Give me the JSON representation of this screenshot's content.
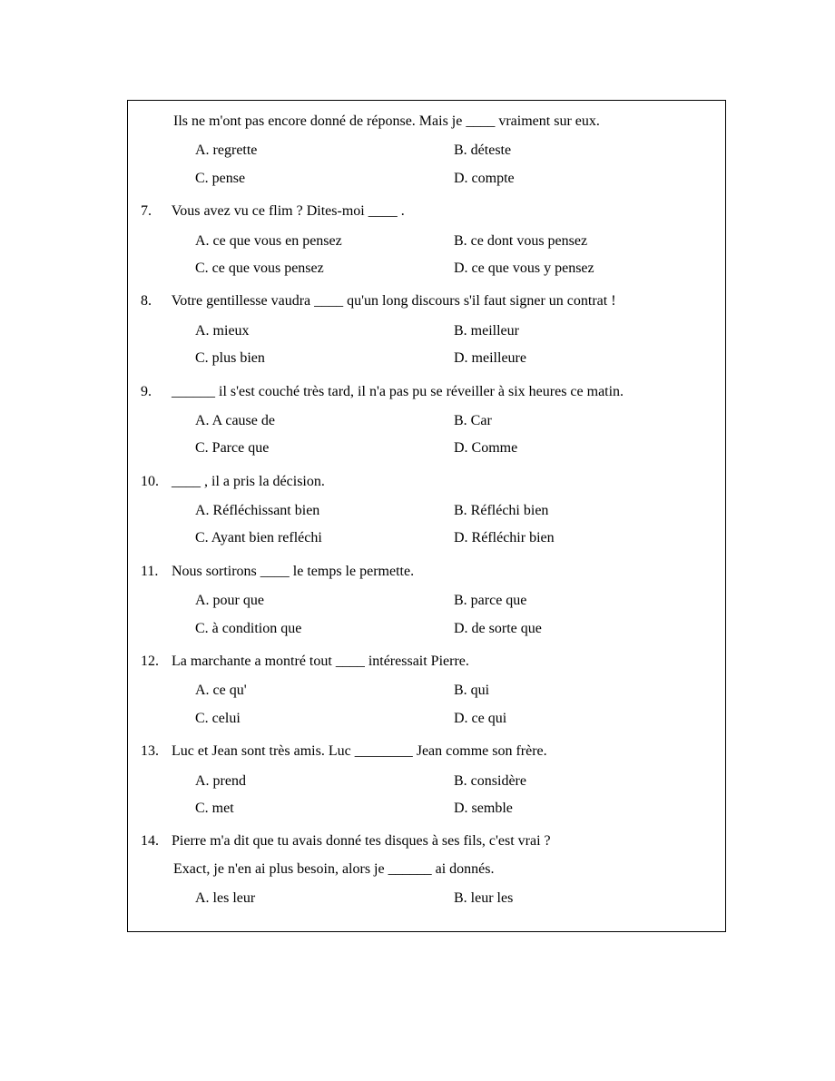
{
  "first_line": "Ils ne m'ont pas encore donné de réponse. Mais je ____ vraiment sur eux.",
  "q6_opts": {
    "A": "A. regrette",
    "B": "B. déteste",
    "C": "C. pense",
    "D": "D. compte"
  },
  "q7_num": "7.",
  "q7_prompt": "Vous avez vu ce flim ?    Dites-moi ____ .",
  "q7_opts": {
    "A": "A. ce que vous en pensez",
    "B": "B. ce dont vous pensez",
    "C": "C. ce que vous pensez",
    "D": "D. ce que vous y pensez"
  },
  "q8_num": "8.",
  "q8_prompt": "Votre gentillesse vaudra ____ qu'un long discours s'il faut signer un contrat !",
  "q8_opts": {
    "A": "A. mieux",
    "B": "B. meilleur",
    "C": "C. plus bien",
    "D": "D. meilleure"
  },
  "q9_num": "9.",
  "q9_prompt": "______ il s'est couché très tard, il n'a pas pu se réveiller à six heures ce matin.",
  "q9_opts": {
    "A": "A. A cause de",
    "B": "B. Car",
    "C": "C. Parce que",
    "D": "D. Comme"
  },
  "q10_num": "10.",
  "q10_prompt": "____ , il a pris la décision.",
  "q10_opts": {
    "A": "A. Réfléchissant bien",
    "B": "B. Réfléchi bien",
    "C": "C. Ayant bien refléchi",
    "D": "D. Réfléchir bien"
  },
  "q11_num": "11.",
  "q11_prompt": "Nous sortirons ____ le temps le permette.",
  "q11_opts": {
    "A": "A. pour que",
    "B": "B. parce que",
    "C": "C. à condition que",
    "D": "D. de sorte que"
  },
  "q12_num": "12.",
  "q12_prompt": "La marchante a montré tout ____ intéressait Pierre.",
  "q12_opts": {
    "A": "A. ce qu'",
    "B": "B. qui",
    "C": "C. celui",
    "D": "D. ce qui"
  },
  "q13_num": "13.",
  "q13_prompt": "Luc et Jean sont très amis. Luc ________ Jean comme son frère.",
  "q13_opts": {
    "A": "A. prend",
    "B": "B. considère",
    "C": "C. met",
    "D": "D. semble"
  },
  "q14_num": "14.",
  "q14_prompt1": "Pierre m'a dit que tu avais donné tes disques à ses fils, c'est vrai ?",
  "q14_prompt2": "Exact, je n'en ai plus besoin, alors je ______ ai donnés.",
  "q14_opts": {
    "A": "A. les leur",
    "B": "B. leur les"
  }
}
